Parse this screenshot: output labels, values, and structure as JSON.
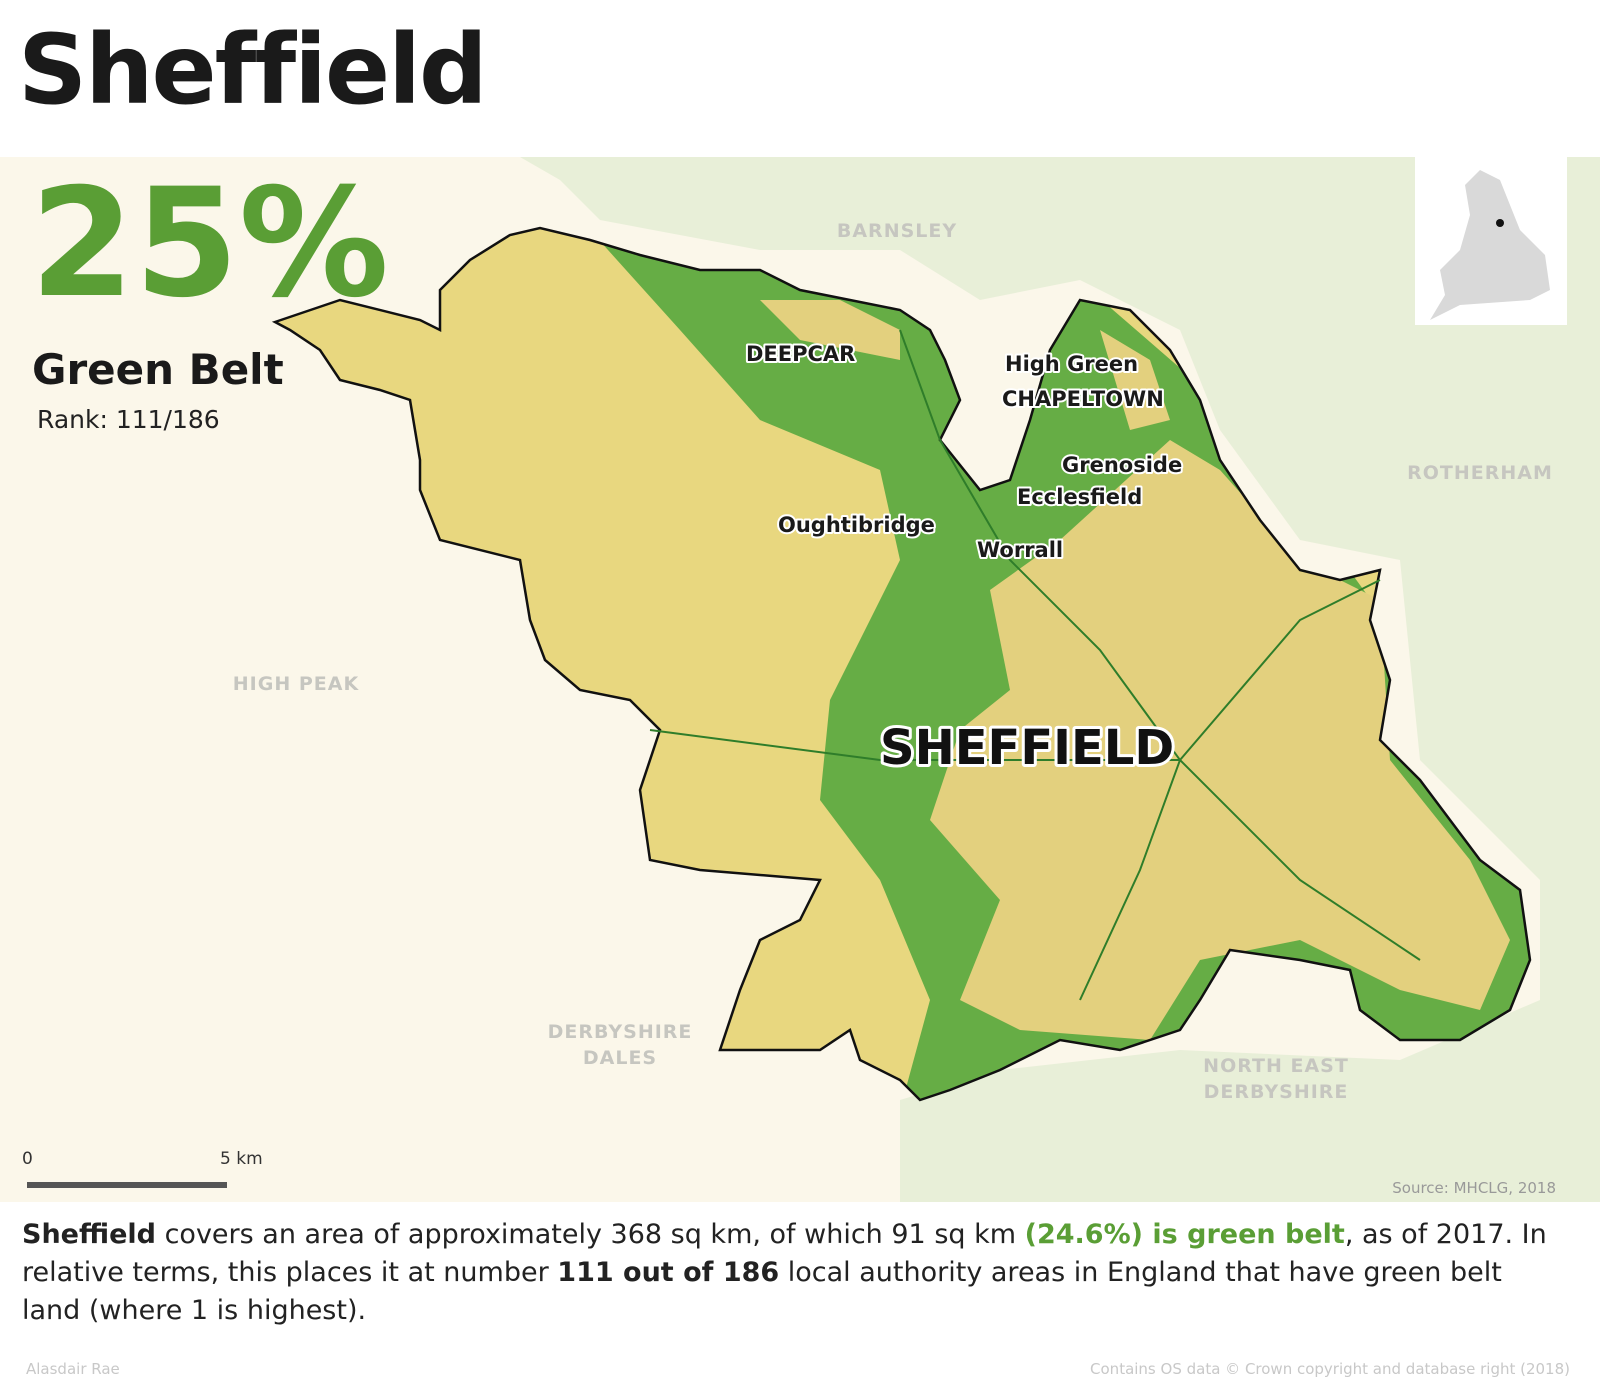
{
  "header": {
    "title": "Sheffield"
  },
  "stat": {
    "headline": "25%",
    "label": "Green Belt",
    "rank": "Rank: 111/186"
  },
  "map": {
    "regions": [
      "BARNSLEY",
      "ROTHERHAM",
      "HIGH PEAK",
      "DERBYSHIRE",
      "DALES",
      "NORTH EAST",
      "DERBYSHIRE"
    ],
    "places": [
      "DEEPCAR",
      "High Green",
      "CHAPELTOWN",
      "Grenoside",
      "Ecclesfield",
      "Oughtibridge",
      "Worrall",
      "SHEFFIELD"
    ],
    "scale": {
      "start": "0",
      "end": "5 km"
    },
    "source": "Source: MHCLG, 2018"
  },
  "description": {
    "segments": [
      {
        "text": "Sheffield",
        "style": "bold"
      },
      {
        "text": " covers an area of approximately 368 sq km, of which 91 sq km ",
        "style": "normal"
      },
      {
        "text": "(24.6%) is green belt",
        "style": "green"
      },
      {
        "text": ", as of 2017. In relative terms, this places it at number ",
        "style": "normal"
      },
      {
        "text": "111 out of 186",
        "style": "bold"
      },
      {
        "text": " local authority areas in England that have green belt land (where 1 is highest).",
        "style": "normal"
      }
    ]
  },
  "footer": {
    "author": "Alasdair Rae",
    "copyright": "Contains OS data © Crown copyright and database right (2018)"
  }
}
